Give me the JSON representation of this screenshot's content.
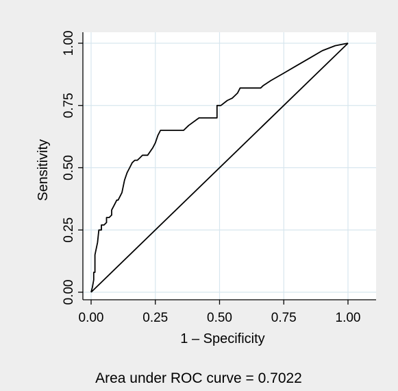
{
  "chart_data": {
    "type": "line",
    "xlabel": "1 – Specificity",
    "ylabel": "Sensitivity",
    "xlim": [
      0,
      1
    ],
    "ylim": [
      0,
      1
    ],
    "x_ticks": [
      "0.00",
      "0.25",
      "0.50",
      "0.75",
      "1.00"
    ],
    "y_ticks": [
      "0.00",
      "0.25",
      "0.50",
      "0.75",
      "1.00"
    ],
    "grid": true,
    "colors": {
      "background": "#eeeeee",
      "plot_area": "#ffffff",
      "grid": "#d7e6ee",
      "line": "#000000"
    },
    "series": [
      {
        "x": [
          0,
          0.005,
          0.01,
          0.01,
          0.015,
          0.015,
          0.025,
          0.03,
          0.035,
          0.04,
          0.04,
          0.045,
          0.05,
          0.06,
          0.06,
          0.07,
          0.08,
          0.08,
          0.09,
          0.1,
          0.105,
          0.11,
          0.12,
          0.13,
          0.14,
          0.145,
          0.15,
          0.16,
          0.17,
          0.18,
          0.19,
          0.2,
          0.22,
          0.24,
          0.25,
          0.26,
          0.27,
          0.28,
          0.3,
          0.36,
          0.38,
          0.42,
          0.44,
          0.49,
          0.49,
          0.505,
          0.53,
          0.55,
          0.57,
          0.58,
          0.62,
          0.66,
          0.67,
          0.7,
          0.75,
          0.8,
          0.85,
          0.9,
          0.95,
          1.0
        ],
        "y": [
          0,
          0.02,
          0.05,
          0.08,
          0.08,
          0.15,
          0.2,
          0.25,
          0.25,
          0.25,
          0.27,
          0.27,
          0.27,
          0.28,
          0.3,
          0.3,
          0.31,
          0.33,
          0.35,
          0.37,
          0.37,
          0.38,
          0.4,
          0.45,
          0.48,
          0.49,
          0.5,
          0.52,
          0.53,
          0.53,
          0.54,
          0.55,
          0.55,
          0.58,
          0.6,
          0.63,
          0.65,
          0.65,
          0.65,
          0.65,
          0.67,
          0.7,
          0.7,
          0.7,
          0.75,
          0.75,
          0.77,
          0.78,
          0.8,
          0.82,
          0.82,
          0.82,
          0.83,
          0.85,
          0.88,
          0.91,
          0.94,
          0.97,
          0.99,
          1.0
        ]
      },
      {
        "x": [
          0,
          1
        ],
        "y": [
          0,
          1
        ]
      }
    ],
    "annotation": "Area under ROC curve = 0.7022"
  }
}
